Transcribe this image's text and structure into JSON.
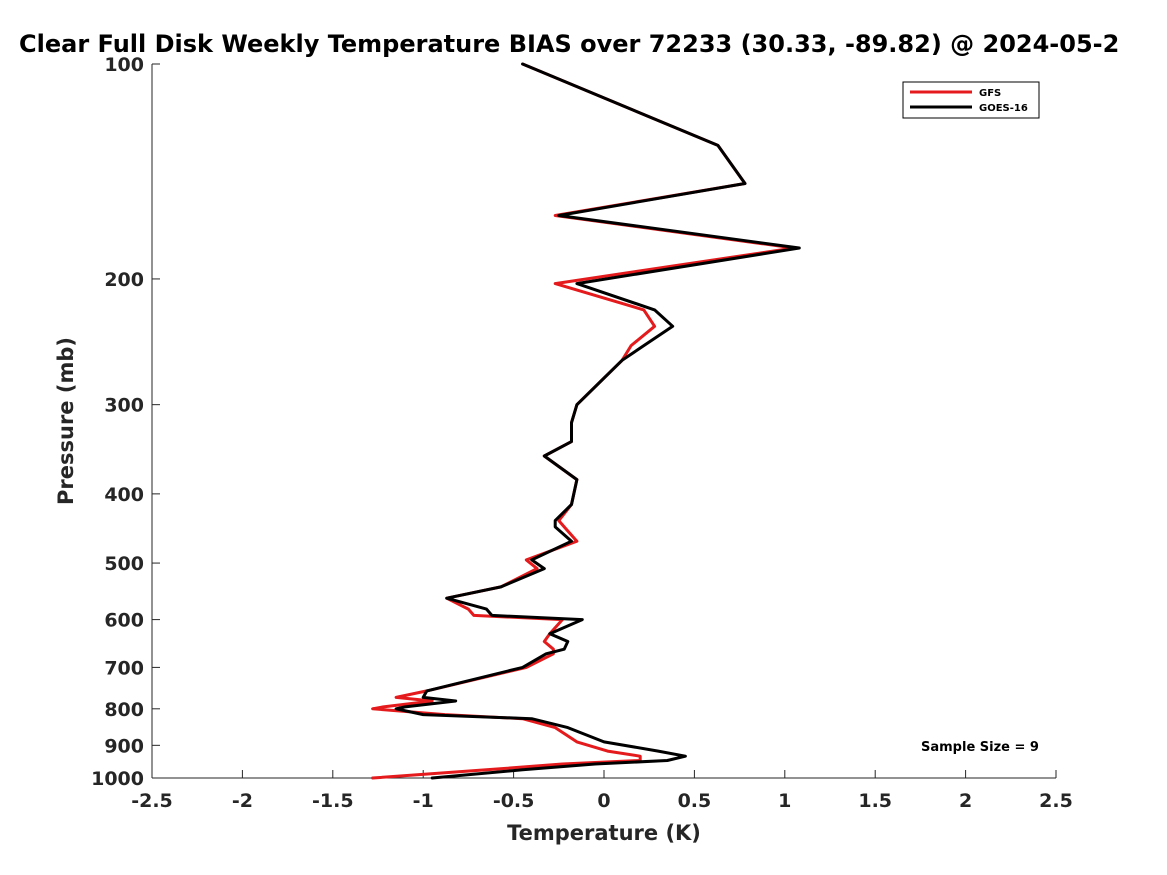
{
  "chart_data": {
    "type": "line",
    "title": "Clear Full Disk Weekly Temperature BIAS over 72233 (30.33, -89.82) @ 2024-05-2",
    "xlabel": "Temperature (K)",
    "ylabel": "Pressure (mb)",
    "xlim": [
      -2.5,
      2.5
    ],
    "ylim": [
      1000,
      100
    ],
    "yscale": "log",
    "xticks": [
      -2.5,
      -2,
      -1.5,
      -1,
      -0.5,
      0,
      0.5,
      1,
      1.5,
      2,
      2.5
    ],
    "xtick_labels": [
      "-2.5",
      "-2",
      "-1.5",
      "-1",
      "-0.5",
      "0",
      "0.5",
      "1",
      "1.5",
      "2",
      "2.5"
    ],
    "yticks": [
      100,
      200,
      300,
      400,
      500,
      600,
      700,
      800,
      900,
      1000
    ],
    "ytick_labels": [
      "100",
      "200",
      "300",
      "400",
      "500",
      "600",
      "700",
      "800",
      "900",
      "1000"
    ],
    "grid": false,
    "legend_position": "top-right",
    "annotation": "Sample Size = 9",
    "series": [
      {
        "name": "GFS",
        "color": "#e41a1c",
        "points": [
          [
            -0.45,
            100
          ],
          [
            0.63,
            130
          ],
          [
            0.78,
            147
          ],
          [
            -0.27,
            163
          ],
          [
            1.05,
            181
          ],
          [
            -0.27,
            203
          ],
          [
            0.22,
            221
          ],
          [
            0.28,
            233
          ],
          [
            0.15,
            248
          ],
          [
            0.1,
            260
          ],
          [
            -0.15,
            300
          ],
          [
            -0.18,
            318
          ],
          [
            -0.18,
            338
          ],
          [
            -0.33,
            354
          ],
          [
            -0.15,
            382
          ],
          [
            -0.18,
            414
          ],
          [
            -0.25,
            436
          ],
          [
            -0.22,
            445
          ],
          [
            -0.15,
            466
          ],
          [
            -0.43,
            495
          ],
          [
            -0.37,
            509
          ],
          [
            -0.57,
            540
          ],
          [
            -0.87,
            560
          ],
          [
            -0.75,
            580
          ],
          [
            -0.72,
            592
          ],
          [
            -0.23,
            600
          ],
          [
            -0.3,
            628
          ],
          [
            -0.33,
            644
          ],
          [
            -0.28,
            660
          ],
          [
            -0.28,
            670
          ],
          [
            -0.43,
            700
          ],
          [
            -0.98,
            755
          ],
          [
            -1.15,
            771
          ],
          [
            -0.95,
            780
          ],
          [
            -1.22,
            795
          ],
          [
            -1.28,
            800
          ],
          [
            -0.88,
            815
          ],
          [
            -0.45,
            826
          ],
          [
            -0.27,
            850
          ],
          [
            -0.15,
            890
          ],
          [
            0.02,
            917
          ],
          [
            0.2,
            932
          ],
          [
            0.2,
            945
          ],
          [
            -0.23,
            956
          ],
          [
            -0.65,
            974
          ],
          [
            -1.28,
            1000
          ]
        ]
      },
      {
        "name": "GOES-16",
        "color": "#000000",
        "points": [
          [
            -0.45,
            100
          ],
          [
            0.63,
            130
          ],
          [
            0.78,
            147
          ],
          [
            -0.25,
            163
          ],
          [
            1.08,
            181
          ],
          [
            -0.15,
            203
          ],
          [
            0.28,
            221
          ],
          [
            0.38,
            233
          ],
          [
            0.22,
            248
          ],
          [
            0.1,
            260
          ],
          [
            -0.15,
            300
          ],
          [
            -0.18,
            318
          ],
          [
            -0.18,
            338
          ],
          [
            -0.33,
            354
          ],
          [
            -0.15,
            382
          ],
          [
            -0.18,
            414
          ],
          [
            -0.27,
            436
          ],
          [
            -0.27,
            445
          ],
          [
            -0.18,
            466
          ],
          [
            -0.4,
            495
          ],
          [
            -0.33,
            509
          ],
          [
            -0.57,
            540
          ],
          [
            -0.87,
            560
          ],
          [
            -0.65,
            580
          ],
          [
            -0.62,
            592
          ],
          [
            -0.12,
            600
          ],
          [
            -0.3,
            628
          ],
          [
            -0.2,
            644
          ],
          [
            -0.22,
            660
          ],
          [
            -0.32,
            670
          ],
          [
            -0.45,
            700
          ],
          [
            -0.98,
            755
          ],
          [
            -1.0,
            771
          ],
          [
            -0.82,
            780
          ],
          [
            -1.1,
            795
          ],
          [
            -1.15,
            800
          ],
          [
            -1.0,
            815
          ],
          [
            -0.4,
            826
          ],
          [
            -0.2,
            850
          ],
          [
            0.0,
            890
          ],
          [
            0.3,
            917
          ],
          [
            0.45,
            932
          ],
          [
            0.35,
            945
          ],
          [
            -0.05,
            956
          ],
          [
            -0.45,
            974
          ],
          [
            -0.95,
            1000
          ]
        ]
      }
    ]
  }
}
